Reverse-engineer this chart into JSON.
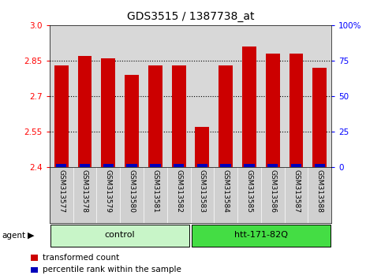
{
  "title": "GDS3515 / 1387738_at",
  "samples": [
    "GSM313577",
    "GSM313578",
    "GSM313579",
    "GSM313580",
    "GSM313581",
    "GSM313582",
    "GSM313583",
    "GSM313584",
    "GSM313585",
    "GSM313586",
    "GSM313587",
    "GSM313588"
  ],
  "transformed_count": [
    2.83,
    2.87,
    2.86,
    2.79,
    2.83,
    2.83,
    2.57,
    2.83,
    2.91,
    2.88,
    2.88,
    2.82
  ],
  "percentile_rank": [
    3,
    5,
    6,
    3,
    3,
    3,
    1,
    2,
    5,
    4,
    5,
    4
  ],
  "groups": [
    {
      "label": "control",
      "start": 0,
      "end": 6,
      "color": "#c8f5c8"
    },
    {
      "label": "htt-171-82Q",
      "start": 6,
      "end": 12,
      "color": "#44dd44"
    }
  ],
  "agent_label": "agent",
  "ylim_left": [
    2.4,
    3.0
  ],
  "ylim_right": [
    0,
    100
  ],
  "yticks_left": [
    2.4,
    2.55,
    2.7,
    2.85,
    3.0
  ],
  "yticks_right": [
    0,
    25,
    50,
    75,
    100
  ],
  "bar_color": "#cc0000",
  "percentile_color": "#0000bb",
  "bar_base": 2.4,
  "bar_width": 0.6,
  "bg_color": "#d8d8d8",
  "legend_items": [
    {
      "label": "transformed count",
      "color": "#cc0000"
    },
    {
      "label": "percentile rank within the sample",
      "color": "#0000bb"
    }
  ]
}
